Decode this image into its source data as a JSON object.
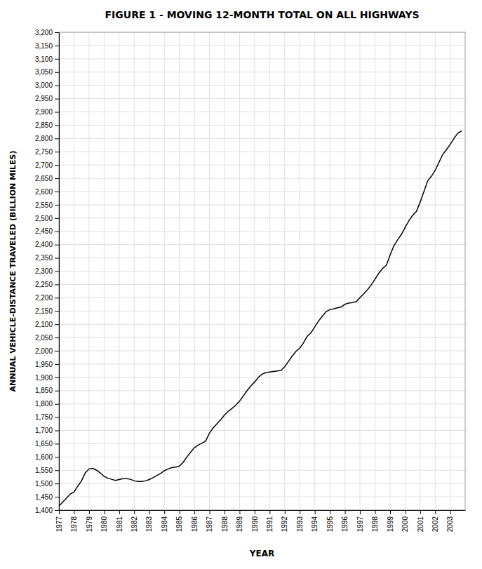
{
  "chart_data": {
    "type": "line",
    "title": "FIGURE 1 - MOVING 12-MONTH TOTAL ON ALL HIGHWAYS",
    "xlabel": "YEAR",
    "ylabel": "ANNUAL VEHICLE-DISTANCE TRAVELED (BILLION MILES)",
    "color": "#000000",
    "grid": true,
    "xlim": [
      1977,
      2003.99
    ],
    "xticks": [
      1977,
      1978,
      1979,
      1980,
      1981,
      1982,
      1983,
      1984,
      1985,
      1986,
      1987,
      1988,
      1989,
      1990,
      1991,
      1992,
      1993,
      1994,
      1995,
      1996,
      1997,
      1998,
      1999,
      2000,
      2001,
      2002,
      2003
    ],
    "ylim": [
      1400,
      3200
    ],
    "yticks": [
      {
        "value": 1400,
        "label": "1,400"
      },
      {
        "value": 1450,
        "label": "1,450"
      },
      {
        "value": 1500,
        "label": "1,500"
      },
      {
        "value": 1550,
        "label": "1,550"
      },
      {
        "value": 1600,
        "label": "1,600"
      },
      {
        "value": 1650,
        "label": "1,650"
      },
      {
        "value": 1700,
        "label": "1,700"
      },
      {
        "value": 1750,
        "label": "1,750"
      },
      {
        "value": 1800,
        "label": "1,800"
      },
      {
        "value": 1850,
        "label": "1,850"
      },
      {
        "value": 1900,
        "label": "1,900"
      },
      {
        "value": 1950,
        "label": "1,950"
      },
      {
        "value": 2000,
        "label": "2,000"
      },
      {
        "value": 2050,
        "label": "2,050"
      },
      {
        "value": 2100,
        "label": "2,100"
      },
      {
        "value": 2150,
        "label": "2,150"
      },
      {
        "value": 2200,
        "label": "2,200"
      },
      {
        "value": 2250,
        "label": "2,250"
      },
      {
        "value": 2300,
        "label": "2,300"
      },
      {
        "value": 2350,
        "label": "2,350"
      },
      {
        "value": 2400,
        "label": "2,400"
      },
      {
        "value": 2450,
        "label": "2,450"
      },
      {
        "value": 2500,
        "label": "2,500"
      },
      {
        "value": 2550,
        "label": "2,550"
      },
      {
        "value": 2600,
        "label": "2,600"
      },
      {
        "value": 2650,
        "label": "2,650"
      },
      {
        "value": 2700,
        "label": "2,700"
      },
      {
        "value": 2750,
        "label": "2,750"
      },
      {
        "value": 2800,
        "label": "2,800"
      },
      {
        "value": 2850,
        "label": "2,850"
      },
      {
        "value": 2900,
        "label": "2,900"
      },
      {
        "value": 2950,
        "label": "2,950"
      },
      {
        "value": 3000,
        "label": "3,000"
      },
      {
        "value": 3050,
        "label": "3,050"
      },
      {
        "value": 3100,
        "label": "3,100"
      },
      {
        "value": 3150,
        "label": "3,150"
      },
      {
        "value": 3200,
        "label": "3,200"
      }
    ],
    "x": [
      1977.0,
      1977.25,
      1977.5,
      1977.75,
      1978.0,
      1978.25,
      1978.5,
      1978.75,
      1979.0,
      1979.25,
      1979.5,
      1979.75,
      1980.0,
      1980.25,
      1980.5,
      1980.75,
      1981.0,
      1981.25,
      1981.5,
      1981.75,
      1982.0,
      1982.25,
      1982.5,
      1982.75,
      1983.0,
      1983.25,
      1983.5,
      1983.75,
      1984.0,
      1984.25,
      1984.5,
      1984.75,
      1985.0,
      1985.25,
      1985.5,
      1985.75,
      1986.0,
      1986.25,
      1986.5,
      1986.75,
      1987.0,
      1987.25,
      1987.5,
      1987.75,
      1988.0,
      1988.25,
      1988.5,
      1988.75,
      1989.0,
      1989.25,
      1989.5,
      1989.75,
      1990.0,
      1990.25,
      1990.5,
      1990.75,
      1991.0,
      1991.25,
      1991.5,
      1991.75,
      1992.0,
      1992.25,
      1992.5,
      1992.75,
      1993.0,
      1993.25,
      1993.5,
      1993.75,
      1994.0,
      1994.25,
      1994.5,
      1994.75,
      1995.0,
      1995.25,
      1995.5,
      1995.75,
      1996.0,
      1996.25,
      1996.5,
      1996.75,
      1997.0,
      1997.25,
      1997.5,
      1997.75,
      1998.0,
      1998.25,
      1998.5,
      1998.75,
      1999.0,
      1999.25,
      1999.5,
      1999.75,
      2000.0,
      2000.25,
      2000.5,
      2000.75,
      2001.0,
      2001.25,
      2001.5,
      2001.75,
      2002.0,
      2002.25,
      2002.5,
      2002.75,
      2003.0,
      2003.25,
      2003.5,
      2003.75
    ],
    "values": [
      1415,
      1430,
      1445,
      1460,
      1468,
      1490,
      1510,
      1540,
      1555,
      1557,
      1550,
      1540,
      1527,
      1520,
      1516,
      1512,
      1515,
      1518,
      1518,
      1516,
      1510,
      1508,
      1508,
      1510,
      1515,
      1522,
      1530,
      1538,
      1548,
      1555,
      1560,
      1562,
      1565,
      1580,
      1600,
      1618,
      1635,
      1645,
      1652,
      1660,
      1690,
      1710,
      1725,
      1740,
      1758,
      1772,
      1783,
      1795,
      1810,
      1830,
      1850,
      1868,
      1882,
      1900,
      1912,
      1918,
      1920,
      1922,
      1924,
      1926,
      1940,
      1960,
      1980,
      1998,
      2010,
      2030,
      2055,
      2068,
      2090,
      2112,
      2130,
      2148,
      2155,
      2158,
      2162,
      2165,
      2175,
      2180,
      2182,
      2185,
      2200,
      2215,
      2230,
      2248,
      2270,
      2292,
      2310,
      2322,
      2360,
      2395,
      2418,
      2438,
      2465,
      2490,
      2510,
      2525,
      2560,
      2600,
      2640,
      2658,
      2680,
      2710,
      2740,
      2758,
      2778,
      2800,
      2820,
      2828
    ]
  }
}
